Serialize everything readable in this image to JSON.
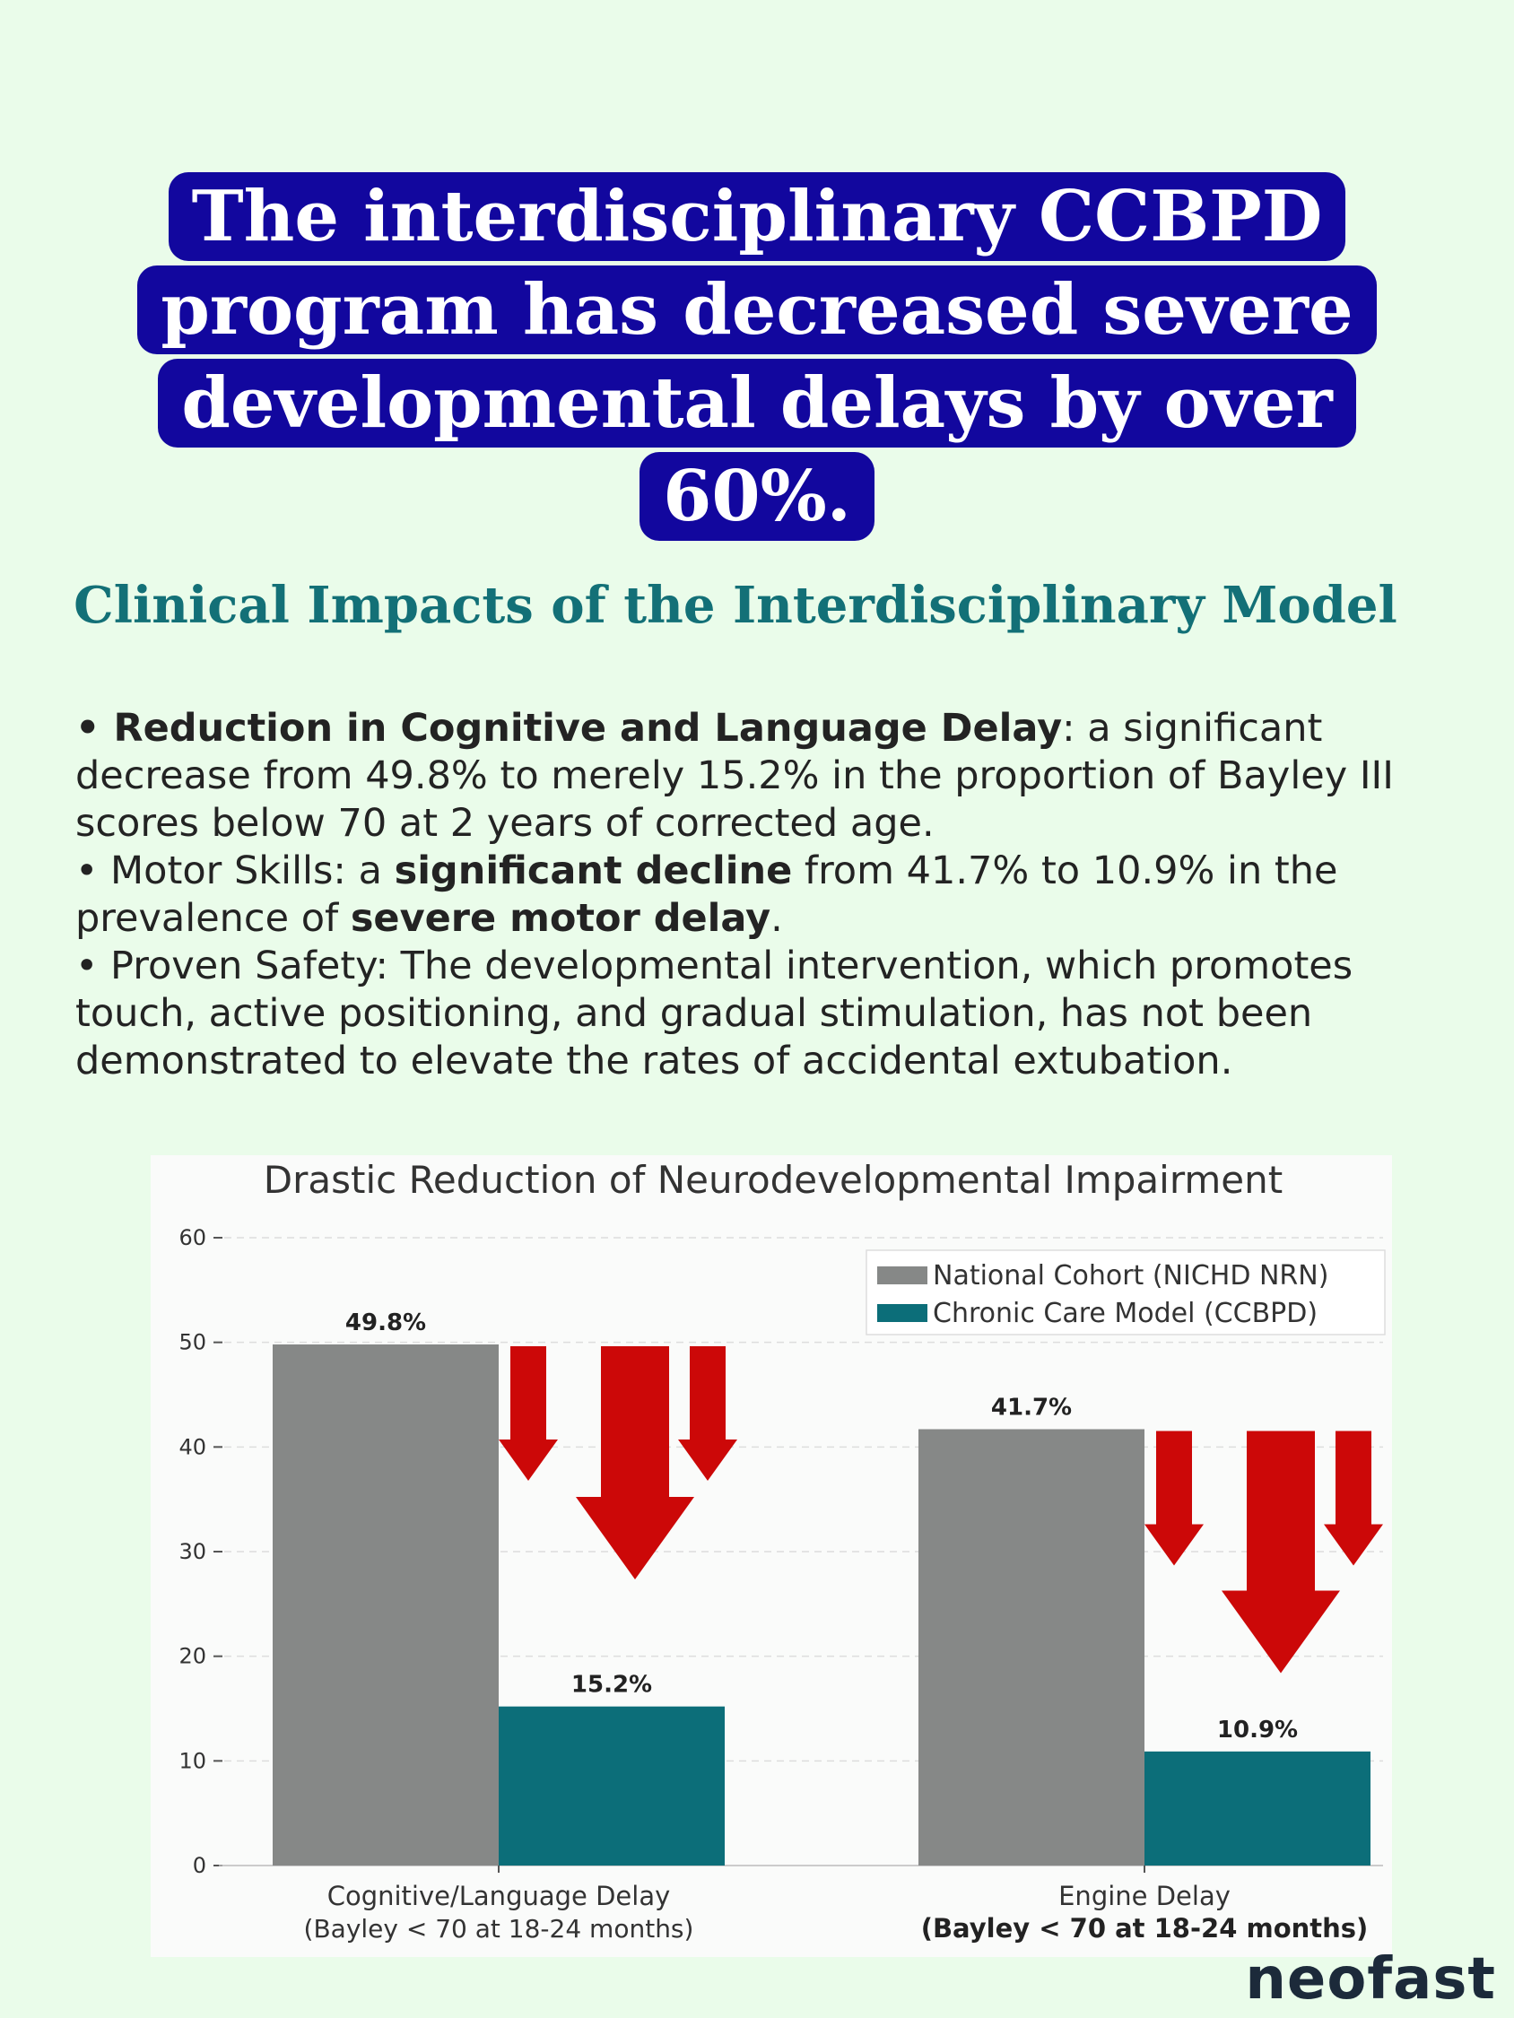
{
  "headline": "The interdisciplinary CCBPD program has decreased severe developmental delays by over 60%.",
  "subtitle": "Clinical Impacts of the Interdisciplinary Model",
  "bullets": {
    "b1": {
      "marker": "• ",
      "bold": "Reduction in Cognitive and Language Delay",
      "text": ": a significant decrease from 49.8% to merely 15.2% in the proportion of Bayley III scores below 70 at 2 years of corrected age."
    },
    "b2": {
      "marker": "• ",
      "pre": "Motor Skills: a ",
      "bold1": "significant decline",
      "mid": " from 41.7% to 10.9% in the prevalence of ",
      "bold2": "severe motor delay",
      "end": "."
    },
    "b3": {
      "marker": "• ",
      "text": "Proven Safety: The developmental intervention, which promotes touch, active positioning, and gradual stimulation, has not been demonstrated to elevate the rates of accidental extubation."
    }
  },
  "chart_data": {
    "type": "bar",
    "title": "Drastic Reduction of Neurodevelopmental Impairment",
    "categories": [
      {
        "label": "Cognitive/Language Delay",
        "sub": "(Bayley < 70 at 18-24 months)",
        "sub_bold": false
      },
      {
        "label": "Engine Delay",
        "sub": "(Bayley < 70 at 18-24 months)",
        "sub_bold": true
      }
    ],
    "series": [
      {
        "name": "National Cohort (NICHD NRN)",
        "values": [
          49.8,
          41.7
        ],
        "color": "#868887"
      },
      {
        "name": "Chronic Care Model (CCBPD)",
        "values": [
          15.2,
          10.9
        ],
        "color": "#0c6e79"
      }
    ],
    "data_labels": [
      [
        "49.8%",
        "41.7%"
      ],
      [
        "15.2%",
        "10.9%"
      ]
    ],
    "yticks": [
      "0",
      "10",
      "20",
      "30",
      "40",
      "50",
      "60"
    ],
    "ylim": [
      0,
      60
    ],
    "grid": true,
    "legend": "top-right",
    "arrow_color": "#cc0808"
  },
  "logo": "neofast"
}
